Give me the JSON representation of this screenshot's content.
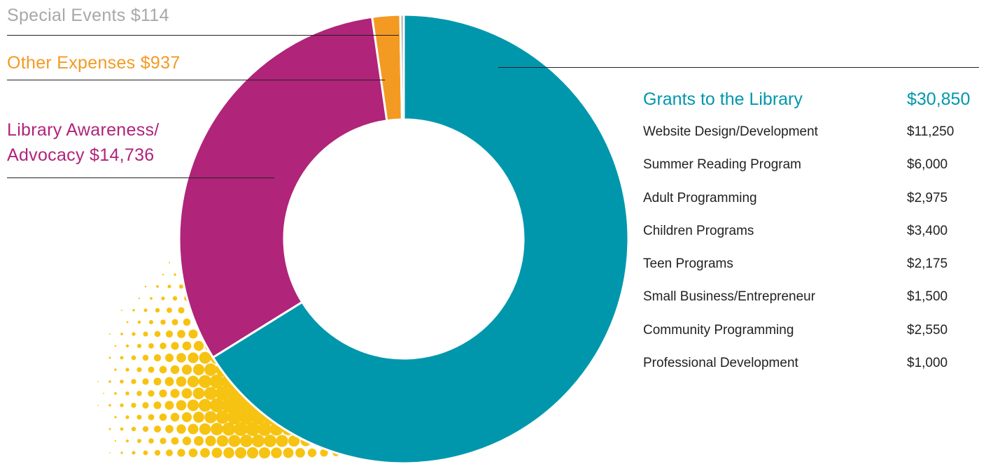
{
  "chart_data": {
    "type": "donut",
    "slices": [
      {
        "label": "Grants to the Library",
        "value": 30850,
        "display": "$30,850",
        "color": "#0097ad"
      },
      {
        "label": "Library Awareness/ Advocacy",
        "value": 14736,
        "display": "$14,736",
        "color": "#b0247a"
      },
      {
        "label": "Other Expenses",
        "value": 937,
        "display": "$937",
        "color": "#f39a23"
      },
      {
        "label": "Special Events",
        "value": 114,
        "display": "$114",
        "color": "#a8a8a8"
      }
    ],
    "callouts": {
      "special_events": "Special Events $114",
      "other_expenses": "Other Expenses $937",
      "awareness_line1": "Library Awareness/",
      "awareness_line2": "Advocacy $14,736"
    },
    "grants_breakdown": {
      "title": "Grants to the Library",
      "total": "$30,850",
      "items": [
        {
          "label": "Website Design/Development",
          "amount": "$11,250"
        },
        {
          "label": "Summer Reading Program",
          "amount": "$6,000"
        },
        {
          "label": "Adult Programming",
          "amount": "$2,975"
        },
        {
          "label": "Children Programs",
          "amount": "$3,400"
        },
        {
          "label": "Teen Programs",
          "amount": "$2,175"
        },
        {
          "label": "Small Business/Entrepreneur",
          "amount": "$1,500"
        },
        {
          "label": "Community Programming",
          "amount": "$2,550"
        },
        {
          "label": "Professional Development",
          "amount": "$1,000"
        }
      ]
    },
    "decoration": {
      "dot_color": "#f7c312"
    }
  }
}
